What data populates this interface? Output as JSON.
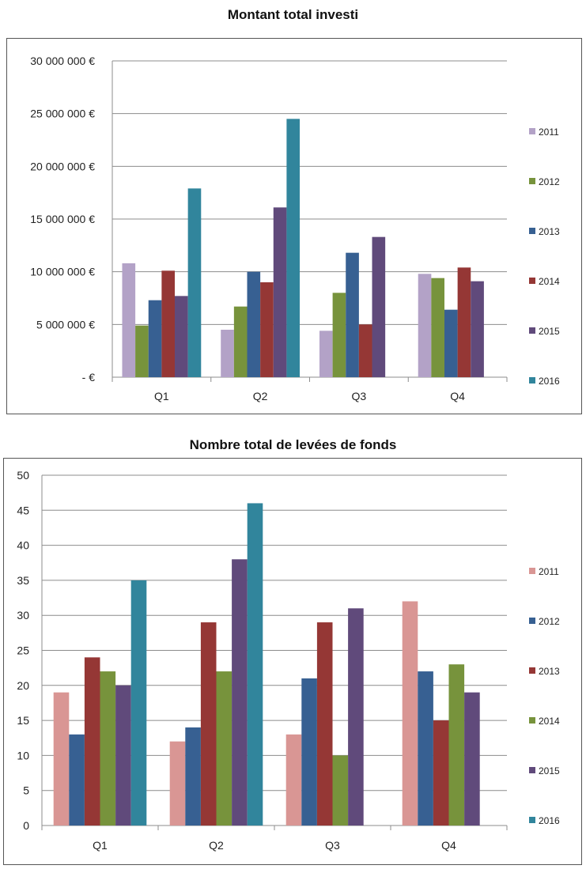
{
  "chart_data": [
    {
      "type": "bar",
      "title": "Montant total investi",
      "categories": [
        "Q1",
        "Q2",
        "Q3",
        "Q4"
      ],
      "ylim": [
        0,
        30000000
      ],
      "yticks": [
        0,
        5000000,
        10000000,
        15000000,
        20000000,
        25000000,
        30000000
      ],
      "ytick_labels": [
        "- €",
        "5 000 000 €",
        "10 000 000 €",
        "15 000 000 €",
        "20 000 000 €",
        "25 000 000 €",
        "30 000 000 €"
      ],
      "grid": true,
      "legend": "right",
      "series": [
        {
          "name": "2011",
          "color": "#b3a2c7",
          "values": [
            10800000,
            4500000,
            4400000,
            9800000
          ]
        },
        {
          "name": "2012",
          "color": "#77933c",
          "values": [
            4900000,
            6700000,
            8000000,
            9400000
          ]
        },
        {
          "name": "2013",
          "color": "#376092",
          "values": [
            7300000,
            10000000,
            11800000,
            6400000
          ]
        },
        {
          "name": "2014",
          "color": "#953735",
          "values": [
            10100000,
            9000000,
            5000000,
            10400000
          ]
        },
        {
          "name": "2015",
          "color": "#604a7b",
          "values": [
            7700000,
            16100000,
            13300000,
            9100000
          ]
        },
        {
          "name": "2016",
          "color": "#31859c",
          "values": [
            17900000,
            24500000,
            null,
            null
          ]
        }
      ]
    },
    {
      "type": "bar",
      "title": "Nombre total de levées de fonds",
      "categories": [
        "Q1",
        "Q2",
        "Q3",
        "Q4"
      ],
      "ylim": [
        0,
        50
      ],
      "yticks": [
        0,
        5,
        10,
        15,
        20,
        25,
        30,
        35,
        40,
        45,
        50
      ],
      "ytick_labels": [
        "0",
        "5",
        "10",
        "15",
        "20",
        "25",
        "30",
        "35",
        "40",
        "45",
        "50"
      ],
      "grid": true,
      "legend": "right",
      "series": [
        {
          "name": "2011",
          "color": "#d99694",
          "values": [
            19,
            12,
            13,
            32
          ]
        },
        {
          "name": "2012",
          "color": "#376092",
          "values": [
            13,
            14,
            21,
            22
          ]
        },
        {
          "name": "2013",
          "color": "#953735",
          "values": [
            24,
            29,
            29,
            15
          ]
        },
        {
          "name": "2014",
          "color": "#77933c",
          "values": [
            22,
            22,
            10,
            23
          ]
        },
        {
          "name": "2015",
          "color": "#604a7b",
          "values": [
            20,
            38,
            31,
            19
          ]
        },
        {
          "name": "2016",
          "color": "#31859c",
          "values": [
            35,
            46,
            null,
            null
          ]
        }
      ]
    }
  ]
}
